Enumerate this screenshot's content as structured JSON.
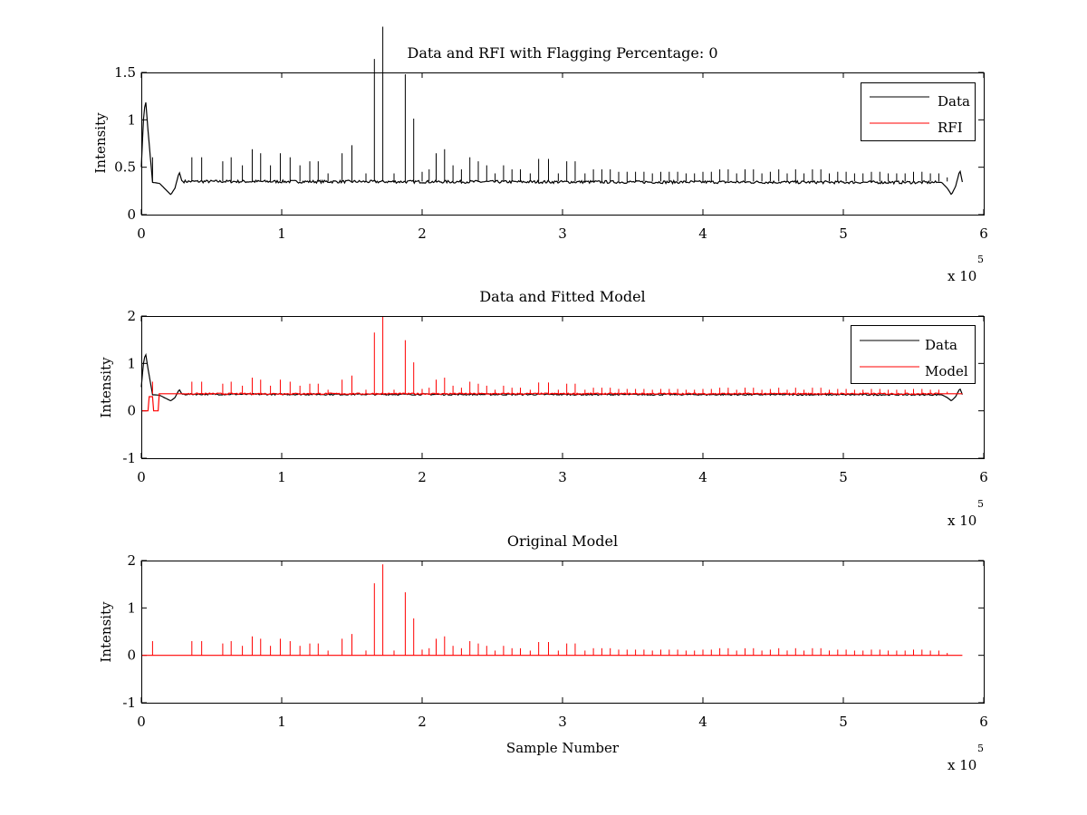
{
  "chart_data": [
    {
      "type": "line",
      "title": "Data and RFI with Flagging Percentage: 0",
      "xlabel": "",
      "ylabel": "Intensity",
      "xlim": [
        0,
        600000
      ],
      "ylim": [
        0,
        1.5
      ],
      "x_ticks": [
        "0",
        "1",
        "2",
        "3",
        "4",
        "5",
        "6"
      ],
      "y_ticks": [
        "0",
        "0.5",
        "1",
        "1.5"
      ],
      "x_multiplier": "x 10",
      "x_multiplier_exp": "5",
      "grid": false,
      "legend_position": "top-right",
      "legend": [
        {
          "name": "Data",
          "color": "#000000"
        },
        {
          "name": "RFI",
          "color": "#ff0000"
        }
      ],
      "series": [
        {
          "name": "Data",
          "color": "#000000",
          "baseline": 0.35,
          "spike_scale": 0.85,
          "x_end": 585000,
          "profile": [
            [
              0,
              0.5
            ],
            [
              1500,
              1.0
            ],
            [
              3000,
              1.22
            ],
            [
              5000,
              0.85
            ],
            [
              8000,
              0.34
            ],
            [
              13000,
              0.33
            ],
            [
              17000,
              0.27
            ],
            [
              21000,
              0.21
            ],
            [
              24000,
              0.28
            ],
            [
              27000,
              0.45
            ],
            [
              29000,
              0.35
            ],
            [
              570000,
              0.34
            ],
            [
              574000,
              0.28
            ],
            [
              577000,
              0.21
            ],
            [
              580000,
              0.3
            ],
            [
              583000,
              0.47
            ],
            [
              585000,
              0.33
            ]
          ]
        },
        {
          "name": "RFI",
          "color": "#ff0000",
          "values": []
        }
      ]
    },
    {
      "type": "line",
      "title": "Data and Fitted Model",
      "xlabel": "",
      "ylabel": "Intensity",
      "xlim": [
        0,
        600000
      ],
      "ylim": [
        -1,
        2
      ],
      "x_ticks": [
        "0",
        "1",
        "2",
        "3",
        "4",
        "5",
        "6"
      ],
      "y_ticks": [
        "-1",
        "0",
        "1",
        "2"
      ],
      "x_multiplier": "x 10",
      "x_multiplier_exp": "5",
      "grid": false,
      "legend_position": "top-right",
      "legend": [
        {
          "name": "Data",
          "color": "#000000"
        },
        {
          "name": "Model",
          "color": "#ff0000"
        }
      ],
      "series": [
        {
          "name": "Data",
          "color": "#000000",
          "baseline": 0.35,
          "spike_scale": 0.0,
          "x_end": 585000,
          "profile": [
            [
              0,
              0.5
            ],
            [
              1500,
              1.0
            ],
            [
              3000,
              1.22
            ],
            [
              5000,
              0.85
            ],
            [
              8000,
              0.34
            ],
            [
              13000,
              0.33
            ],
            [
              17000,
              0.27
            ],
            [
              21000,
              0.21
            ],
            [
              24000,
              0.28
            ],
            [
              27000,
              0.45
            ],
            [
              29000,
              0.35
            ],
            [
              570000,
              0.34
            ],
            [
              574000,
              0.28
            ],
            [
              577000,
              0.21
            ],
            [
              580000,
              0.3
            ],
            [
              583000,
              0.47
            ],
            [
              585000,
              0.33
            ]
          ]
        },
        {
          "name": "Model",
          "color": "#ff0000",
          "baseline": 0.36,
          "spike_scale": 0.85,
          "x_end": 585000,
          "profile": [
            [
              0,
              0.0
            ],
            [
              5000,
              0.0
            ],
            [
              5000,
              0.3
            ],
            [
              8000,
              0.3
            ],
            [
              8000,
              0.0
            ],
            [
              12000,
              0.0
            ],
            [
              12000,
              0.36
            ],
            [
              585000,
              0.36
            ]
          ]
        }
      ]
    },
    {
      "type": "line",
      "title": "Original Model",
      "xlabel": "Sample Number",
      "ylabel": "Intensity",
      "xlim": [
        0,
        600000
      ],
      "ylim": [
        -1,
        2
      ],
      "x_ticks": [
        "0",
        "1",
        "2",
        "3",
        "4",
        "5",
        "6"
      ],
      "y_ticks": [
        "-1",
        "0",
        "1",
        "2"
      ],
      "x_multiplier": "x 10",
      "x_multiplier_exp": "5",
      "grid": false,
      "series": [
        {
          "name": "",
          "color": "#ff0000",
          "baseline": 0.0,
          "spike_scale": 1.0,
          "x_end": 585000,
          "profile": [
            [
              0,
              0.0
            ],
            [
              585000,
              0.0
            ]
          ]
        }
      ]
    }
  ],
  "spikes": [
    [
      8000,
      0.3
    ],
    [
      36000,
      0.3
    ],
    [
      43000,
      0.3
    ],
    [
      58000,
      0.25
    ],
    [
      64000,
      0.3
    ],
    [
      72000,
      0.2
    ],
    [
      79000,
      0.4
    ],
    [
      85000,
      0.35
    ],
    [
      92000,
      0.2
    ],
    [
      99000,
      0.35
    ],
    [
      106000,
      0.3
    ],
    [
      113000,
      0.2
    ],
    [
      120000,
      0.25
    ],
    [
      126000,
      0.25
    ],
    [
      133000,
      0.1
    ],
    [
      143000,
      0.35
    ],
    [
      150000,
      0.45
    ],
    [
      160000,
      0.1
    ],
    [
      166000,
      1.52
    ],
    [
      172000,
      1.92
    ],
    [
      180000,
      0.1
    ],
    [
      188000,
      1.33
    ],
    [
      194000,
      0.78
    ],
    [
      200000,
      0.12
    ],
    [
      205000,
      0.15
    ],
    [
      210000,
      0.35
    ],
    [
      216000,
      0.4
    ],
    [
      222000,
      0.2
    ],
    [
      228000,
      0.15
    ],
    [
      234000,
      0.3
    ],
    [
      240000,
      0.25
    ],
    [
      246000,
      0.2
    ],
    [
      252000,
      0.1
    ],
    [
      258000,
      0.2
    ],
    [
      264000,
      0.15
    ],
    [
      270000,
      0.15
    ],
    [
      277000,
      0.1
    ],
    [
      283000,
      0.28
    ],
    [
      290000,
      0.28
    ],
    [
      297000,
      0.1
    ],
    [
      303000,
      0.25
    ],
    [
      309000,
      0.25
    ],
    [
      316000,
      0.1
    ],
    [
      322000,
      0.15
    ],
    [
      328000,
      0.15
    ],
    [
      334000,
      0.15
    ],
    [
      340000,
      0.12
    ],
    [
      346000,
      0.12
    ],
    [
      352000,
      0.12
    ],
    [
      358000,
      0.12
    ],
    [
      364000,
      0.1
    ],
    [
      370000,
      0.12
    ],
    [
      376000,
      0.12
    ],
    [
      382000,
      0.12
    ],
    [
      388000,
      0.1
    ],
    [
      394000,
      0.1
    ],
    [
      400000,
      0.12
    ],
    [
      406000,
      0.12
    ],
    [
      412000,
      0.15
    ],
    [
      418000,
      0.15
    ],
    [
      424000,
      0.1
    ],
    [
      430000,
      0.15
    ],
    [
      436000,
      0.15
    ],
    [
      442000,
      0.1
    ],
    [
      448000,
      0.12
    ],
    [
      454000,
      0.15
    ],
    [
      460000,
      0.1
    ],
    [
      466000,
      0.15
    ],
    [
      472000,
      0.1
    ],
    [
      478000,
      0.15
    ],
    [
      484000,
      0.15
    ],
    [
      490000,
      0.1
    ],
    [
      496000,
      0.12
    ],
    [
      502000,
      0.12
    ],
    [
      508000,
      0.1
    ],
    [
      514000,
      0.1
    ],
    [
      520000,
      0.12
    ],
    [
      526000,
      0.12
    ],
    [
      532000,
      0.1
    ],
    [
      538000,
      0.1
    ],
    [
      544000,
      0.1
    ],
    [
      550000,
      0.12
    ],
    [
      556000,
      0.12
    ],
    [
      562000,
      0.1
    ],
    [
      568000,
      0.1
    ],
    [
      574000,
      0.05
    ]
  ]
}
